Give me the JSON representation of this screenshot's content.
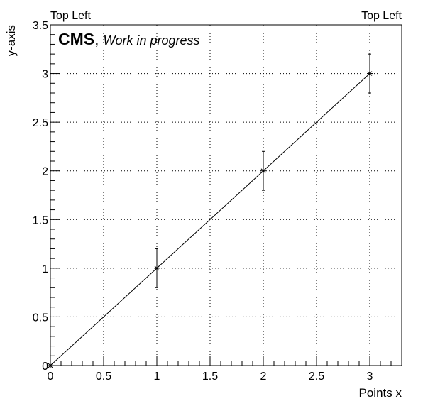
{
  "header": {
    "left_label": "Top Left",
    "right_label": "Top Left"
  },
  "cms_label": {
    "bold": "CMS",
    "comma": ",",
    "italic": "Work in progress"
  },
  "chart_data": {
    "type": "scatter",
    "xlabel": "Points x",
    "ylabel": "y-axis",
    "xlim": [
      0,
      3.3
    ],
    "ylim": [
      0,
      3.5
    ],
    "grid": true,
    "x_ticks": [
      "0",
      "0.5",
      "1",
      "1.5",
      "2",
      "2.5",
      "3"
    ],
    "y_ticks": [
      "0",
      "0.5",
      "1",
      "1.5",
      "2",
      "2.5",
      "3",
      "3.5"
    ],
    "series": [
      {
        "x": [
          0,
          1,
          2,
          3
        ],
        "y": [
          0,
          1,
          2,
          3
        ],
        "yerr": [
          0,
          0.2,
          0.2,
          0.2
        ],
        "marker": "star",
        "line": true,
        "color": "#000000"
      }
    ]
  }
}
